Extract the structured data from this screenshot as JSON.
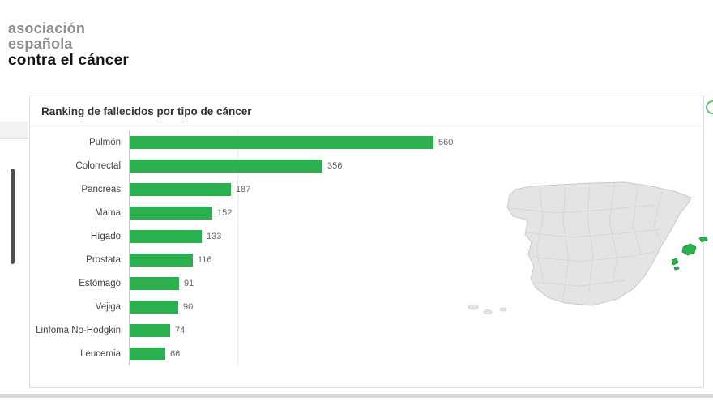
{
  "brand": {
    "line1": "asociación",
    "line2": "española",
    "line3": "contra el cáncer"
  },
  "panel": {
    "title": "Ranking de fallecidos por tipo de cáncer"
  },
  "chart_data": {
    "type": "bar",
    "orientation": "horizontal",
    "title": "Ranking de fallecidos por tipo de cáncer",
    "categories": [
      "Pulmón",
      "Colorrectal",
      "Pancreas",
      "Mama",
      "Hígado",
      "Prostata",
      "Estómago",
      "Vejiga",
      "Linfoma No-Hodgkin",
      "Leucemia"
    ],
    "values": [
      560,
      356,
      187,
      152,
      133,
      116,
      91,
      90,
      74,
      66
    ],
    "xlim": [
      0,
      600
    ],
    "bar_color": "#2ab04e",
    "value_labels": true,
    "legend": "none",
    "grid": "minimal"
  },
  "map": {
    "name": "spain-provinces-map",
    "base_color": "#e4e4e4",
    "highlight_color": "#2ab04e",
    "highlighted_regions": [
      "Illes Balears"
    ]
  }
}
